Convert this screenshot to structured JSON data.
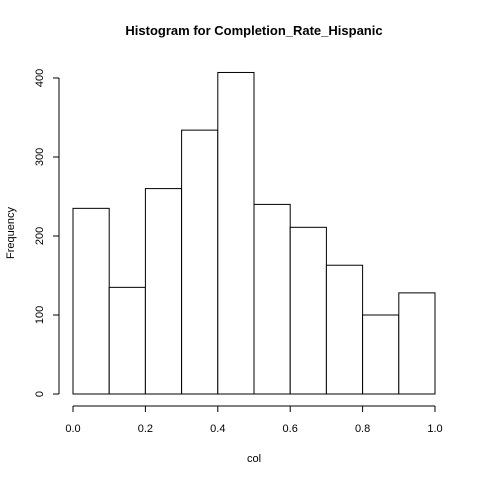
{
  "chart_data": {
    "type": "bar",
    "title": "Histogram for  Completion_Rate_Hispanic",
    "xlabel": "col",
    "ylabel": "Frequency",
    "bins": [
      {
        "from": 0.0,
        "to": 0.1,
        "count": 235
      },
      {
        "from": 0.1,
        "to": 0.2,
        "count": 135
      },
      {
        "from": 0.2,
        "to": 0.3,
        "count": 260
      },
      {
        "from": 0.3,
        "to": 0.4,
        "count": 334
      },
      {
        "from": 0.4,
        "to": 0.5,
        "count": 407
      },
      {
        "from": 0.5,
        "to": 0.6,
        "count": 240
      },
      {
        "from": 0.6,
        "to": 0.7,
        "count": 211
      },
      {
        "from": 0.7,
        "to": 0.8,
        "count": 163
      },
      {
        "from": 0.8,
        "to": 0.9,
        "count": 100
      },
      {
        "from": 0.9,
        "to": 1.0,
        "count": 128
      }
    ],
    "xlim": [
      0.0,
      1.0
    ],
    "ylim": [
      0,
      400
    ],
    "x_ticks": [
      "0.0",
      "0.2",
      "0.4",
      "0.6",
      "0.8",
      "1.0"
    ],
    "y_ticks": [
      "0",
      "100",
      "200",
      "300",
      "400"
    ],
    "grid": false,
    "legend": "none",
    "colors": {
      "bar_fill": "#ffffff",
      "bar_stroke": "#000000",
      "background": "#ffffff"
    }
  }
}
